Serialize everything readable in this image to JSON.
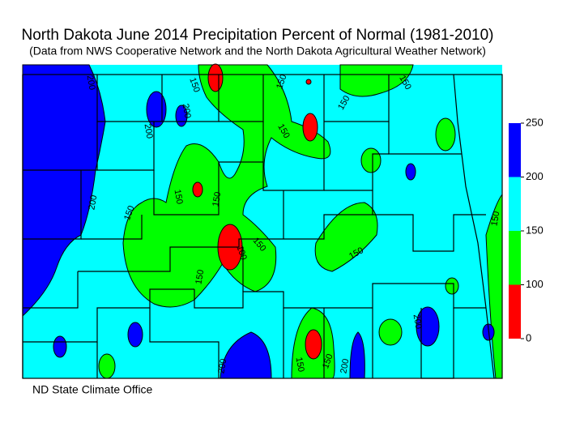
{
  "header": {
    "title": "North Dakota June 2014 Precipitation Percent of Normal (1981-2010)",
    "subtitle": "(Data from NWS Cooperative Network and the North Dakota Agricultural Weather Network)"
  },
  "contour_labels": [
    "200",
    "150",
    "150",
    "150",
    "200",
    "150",
    "200",
    "150",
    "150",
    "150",
    "200",
    "150",
    "150",
    "100",
    "150",
    "150",
    "150",
    "200",
    "150",
    "150",
    "200",
    "200"
  ],
  "legend": {
    "ticks": [
      0,
      100,
      150,
      200,
      250
    ],
    "colors": [
      "#ff0000",
      "#00ff00",
      "#00ffff",
      "#0000ff"
    ]
  },
  "footer": "ND State Climate Office"
}
